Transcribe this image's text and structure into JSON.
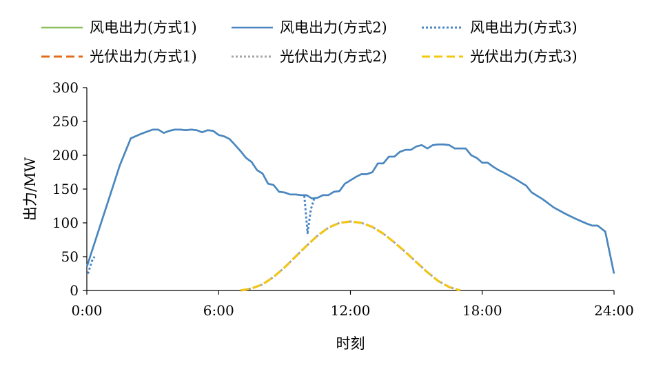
{
  "chart_data": {
    "type": "line",
    "title": "",
    "xlabel": "时刻",
    "ylabel": "出力/MW",
    "xlim": [
      0,
      24
    ],
    "ylim": [
      0,
      300
    ],
    "x_ticks": [
      0,
      6,
      12,
      18,
      24
    ],
    "x_tick_labels": [
      "0:00",
      "6:00",
      "12:00",
      "18:00",
      "24:00"
    ],
    "y_ticks": [
      0,
      50,
      100,
      150,
      200,
      250,
      300
    ],
    "y_tick_labels": [
      "0",
      "50",
      "100",
      "150",
      "200",
      "250",
      "300"
    ],
    "legend_position": "top",
    "series": [
      {
        "name": "风电出力(方式1)",
        "color": "#8dbf5e",
        "style": "solid",
        "x": [
          0,
          0.5,
          1,
          1.5,
          2,
          2.5,
          3,
          3.25,
          3.5,
          3.75,
          4,
          4.25,
          4.5,
          4.75,
          5,
          5.25,
          5.5,
          5.75,
          6,
          6.25,
          6.5,
          6.75,
          7,
          7.25,
          7.5,
          7.75,
          8,
          8.25,
          8.5,
          8.75,
          9,
          9.25,
          9.5,
          9.75,
          10,
          10.25,
          10.5,
          10.75,
          11,
          11.25,
          11.5,
          11.75,
          12,
          12.25,
          12.5,
          12.75,
          13,
          13.25,
          13.5,
          13.75,
          14,
          14.25,
          14.5,
          14.75,
          15,
          15.25,
          15.5,
          15.75,
          16,
          16.25,
          16.5,
          16.75,
          17,
          17.25,
          17.5,
          17.75,
          18,
          18.25,
          18.5,
          18.75,
          19,
          19.5,
          20,
          20.25,
          20.75,
          21.25,
          21.75,
          22.25,
          22.75,
          23,
          23.25,
          23.6,
          24
        ],
        "y": [
          35,
          85,
          135,
          185,
          225,
          232,
          238,
          238,
          233,
          236,
          238,
          238,
          237,
          238,
          237,
          234,
          237,
          236,
          230,
          228,
          224,
          215,
          206,
          196,
          190,
          178,
          173,
          158,
          156,
          146,
          145,
          142,
          142,
          141,
          141,
          136,
          137,
          141,
          141,
          146,
          147,
          158,
          163,
          168,
          172,
          172,
          175,
          188,
          188,
          198,
          198,
          205,
          208,
          208,
          213,
          215,
          210,
          215,
          216,
          216,
          215,
          210,
          210,
          210,
          200,
          196,
          189,
          189,
          183,
          178,
          174,
          165,
          155,
          145,
          135,
          123,
          114,
          106,
          99,
          96,
          96,
          87,
          25
        ]
      },
      {
        "name": "风电出力(方式2)",
        "color": "#4a86c5",
        "style": "solid",
        "x": [
          0,
          0.5,
          1,
          1.5,
          2,
          2.5,
          3,
          3.25,
          3.5,
          3.75,
          4,
          4.25,
          4.5,
          4.75,
          5,
          5.25,
          5.5,
          5.75,
          6,
          6.25,
          6.5,
          6.75,
          7,
          7.25,
          7.5,
          7.75,
          8,
          8.25,
          8.5,
          8.75,
          9,
          9.25,
          9.5,
          9.75,
          10,
          10.25,
          10.5,
          10.75,
          11,
          11.25,
          11.5,
          11.75,
          12,
          12.25,
          12.5,
          12.75,
          13,
          13.25,
          13.5,
          13.75,
          14,
          14.25,
          14.5,
          14.75,
          15,
          15.25,
          15.5,
          15.75,
          16,
          16.25,
          16.5,
          16.75,
          17,
          17.25,
          17.5,
          17.75,
          18,
          18.25,
          18.5,
          18.75,
          19,
          19.5,
          20,
          20.25,
          20.75,
          21.25,
          21.75,
          22.25,
          22.75,
          23,
          23.25,
          23.6,
          24
        ],
        "y": [
          35,
          85,
          135,
          185,
          225,
          232,
          238,
          238,
          233,
          236,
          238,
          238,
          237,
          238,
          237,
          234,
          237,
          236,
          230,
          228,
          224,
          215,
          206,
          196,
          190,
          178,
          173,
          158,
          156,
          146,
          145,
          142,
          142,
          141,
          141,
          136,
          137,
          141,
          141,
          146,
          147,
          158,
          163,
          168,
          172,
          172,
          175,
          188,
          188,
          198,
          198,
          205,
          208,
          208,
          213,
          215,
          210,
          215,
          216,
          216,
          215,
          210,
          210,
          210,
          200,
          196,
          189,
          189,
          183,
          178,
          174,
          165,
          155,
          145,
          135,
          123,
          114,
          106,
          99,
          96,
          96,
          87,
          25
        ]
      },
      {
        "name": "风电出力(方式3)",
        "color": "#4a86c5",
        "style": "dotted",
        "segments": [
          {
            "x": [
              0.05,
              0.15,
              0.25,
              0.35
            ],
            "y": [
              25,
              35,
              45,
              50
            ]
          },
          {
            "x": [
              9.9,
              10.05,
              10.2,
              10.35
            ],
            "y": [
              140,
              85,
              120,
              136
            ]
          }
        ]
      },
      {
        "name": "光伏出力(方式1)",
        "color": "#e36c1c",
        "style": "dashed",
        "x": [
          7,
          7.5,
          8,
          8.5,
          9,
          9.5,
          10,
          10.5,
          11,
          11.5,
          12,
          12.5,
          13,
          13.5,
          14,
          14.5,
          15,
          15.5,
          16,
          16.5,
          17
        ],
        "y": [
          0,
          3,
          9,
          20,
          34,
          50,
          66,
          81,
          93,
          100,
          102,
          100,
          94,
          84,
          71,
          57,
          42,
          27,
          14,
          5,
          0
        ]
      },
      {
        "name": "光伏出力(方式2)",
        "color": "#a6a6a6",
        "style": "dotted",
        "x": [
          7,
          7.5,
          8,
          8.5,
          9,
          9.5,
          10,
          10.5,
          11,
          11.5,
          12,
          12.5,
          13,
          13.5,
          14,
          14.5,
          15,
          15.5,
          16,
          16.5,
          17
        ],
        "y": [
          0,
          3,
          9,
          20,
          34,
          50,
          66,
          81,
          93,
          100,
          102,
          100,
          94,
          84,
          71,
          57,
          42,
          27,
          14,
          5,
          0
        ]
      },
      {
        "name": "光伏出力(方式3)",
        "color": "#f2c811",
        "style": "dashed",
        "x": [
          7,
          7.5,
          8,
          8.5,
          9,
          9.5,
          10,
          10.5,
          11,
          11.5,
          12,
          12.5,
          13,
          13.5,
          14,
          14.5,
          15,
          15.5,
          16,
          16.5,
          17
        ],
        "y": [
          0,
          3,
          9,
          20,
          34,
          50,
          66,
          81,
          93,
          100,
          102,
          100,
          94,
          84,
          71,
          57,
          42,
          27,
          14,
          5,
          0
        ]
      }
    ],
    "legend": [
      {
        "label": "风电出力(方式1)",
        "series": 0
      },
      {
        "label": "风电出力(方式2)",
        "series": 1
      },
      {
        "label": "风电出力(方式3)",
        "series": 2
      },
      {
        "label": "光伏出力(方式1)",
        "series": 3
      },
      {
        "label": "光伏出力(方式2)",
        "series": 4
      },
      {
        "label": "光伏出力(方式3)",
        "series": 5
      }
    ]
  }
}
